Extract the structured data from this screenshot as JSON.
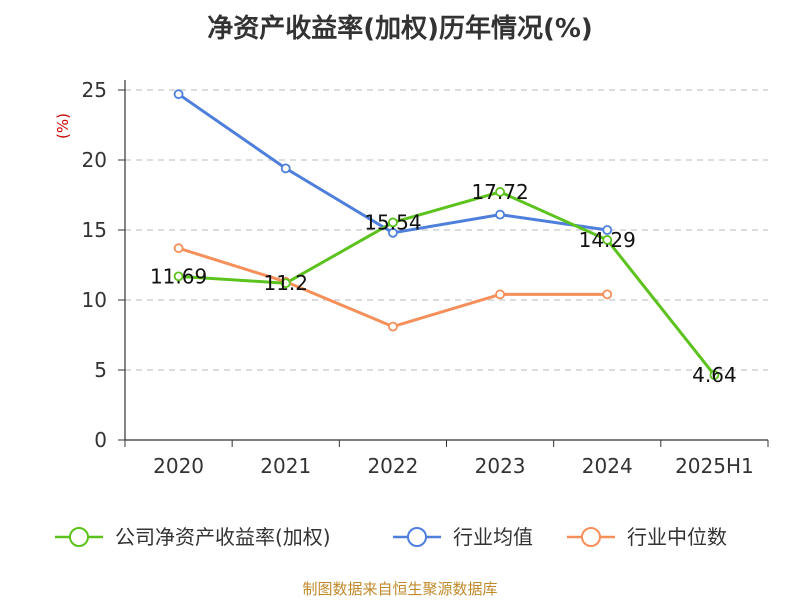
{
  "chart_data": {
    "type": "line",
    "title": "净资产收益率(加权)历年情况(%)",
    "ylabel": "(%)",
    "xlabel": "",
    "categories": [
      "2020",
      "2021",
      "2022",
      "2023",
      "2024",
      "2025H1"
    ],
    "ylim": [
      0,
      25
    ],
    "yticks": [
      0,
      5,
      10,
      15,
      20,
      25
    ],
    "grid": "horizontal-dashed",
    "legend_position": "bottom",
    "series": [
      {
        "name": "公司净资产收益率(加权)",
        "color": "#5cc21d",
        "values": [
          11.69,
          11.2,
          15.54,
          17.72,
          14.29,
          4.64
        ],
        "labels": [
          "11.69",
          "11.2",
          "15.54",
          "17.72",
          "14.29",
          "4.64"
        ]
      },
      {
        "name": "行业均值",
        "color": "#4e7fdc",
        "values": [
          24.7,
          19.4,
          14.8,
          16.1,
          15.0,
          null
        ]
      },
      {
        "name": "行业中位数",
        "color": "#f5905a",
        "values": [
          13.7,
          11.3,
          8.1,
          10.4,
          10.4,
          null
        ]
      }
    ]
  },
  "source": "制图数据来自恒生聚源数据库"
}
